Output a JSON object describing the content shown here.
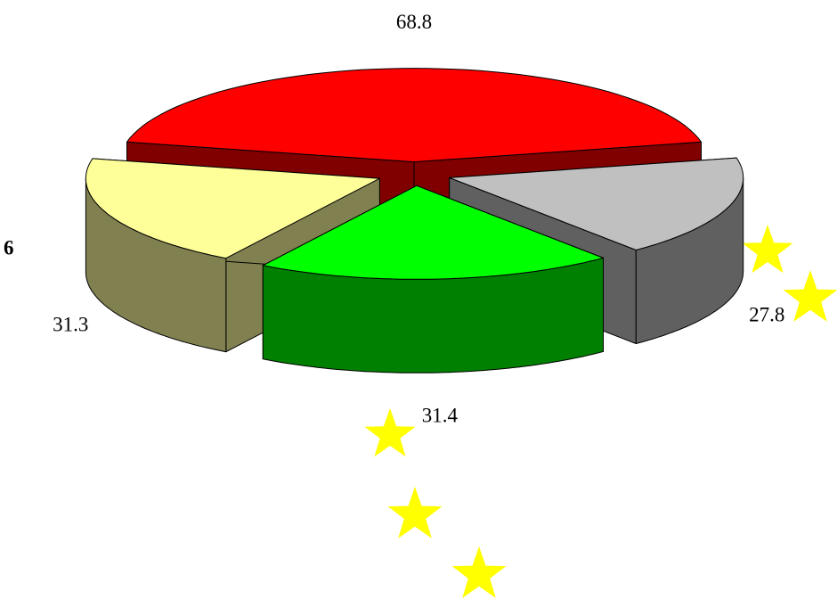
{
  "chart_data": {
    "type": "pie3d",
    "annotation": "6",
    "values": [
      68.8,
      27.8,
      31.4,
      31.3
    ],
    "colors": [
      "#ff0000",
      "#c0c0c0",
      "#00ff00",
      "#ffff99"
    ],
    "side_colors": [
      "#800000",
      "#606060",
      "#008000",
      "#808050"
    ]
  }
}
